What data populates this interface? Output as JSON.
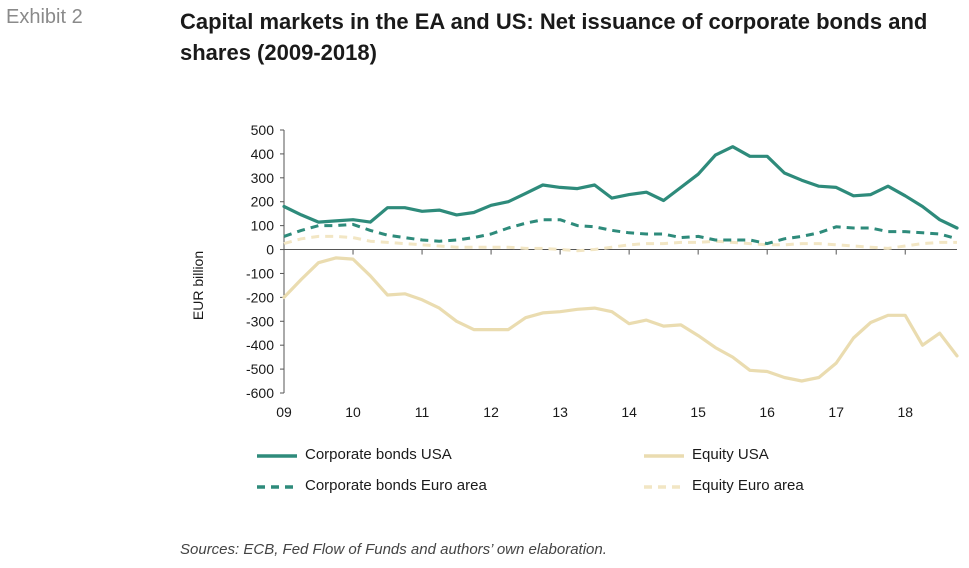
{
  "header": {
    "exhibit": "Exhibit 2",
    "title": "Capital markets in the EA and US: Net issuance of corporate bonds and shares (2009-2018)"
  },
  "footer": {
    "source": "Sources: ECB, Fed Flow of Funds and authors’ own elaboration."
  },
  "chart_data": {
    "type": "line",
    "ylabel": "EUR billion",
    "ylim": [
      -600,
      500
    ],
    "yticks": [
      500,
      400,
      300,
      200,
      100,
      0,
      -100,
      -200,
      -300,
      -400,
      -500,
      -600
    ],
    "xlim": [
      2009,
      2018.75
    ],
    "xticks": [
      2009,
      2010,
      2011,
      2012,
      2013,
      2014,
      2015,
      2016,
      2017,
      2018
    ],
    "xtick_labels": [
      "09",
      "10",
      "11",
      "12",
      "13",
      "14",
      "15",
      "16",
      "17",
      "18"
    ],
    "grid": false,
    "legend_position": "bottom",
    "x": [
      2009.0,
      2009.25,
      2009.5,
      2009.75,
      2010.0,
      2010.25,
      2010.5,
      2010.75,
      2011.0,
      2011.25,
      2011.5,
      2011.75,
      2012.0,
      2012.25,
      2012.5,
      2012.75,
      2013.0,
      2013.25,
      2013.5,
      2013.75,
      2014.0,
      2014.25,
      2014.5,
      2014.75,
      2015.0,
      2015.25,
      2015.5,
      2015.75,
      2016.0,
      2016.25,
      2016.5,
      2016.75,
      2017.0,
      2017.25,
      2017.5,
      2017.75,
      2018.0,
      2018.25,
      2018.5,
      2018.75
    ],
    "series": [
      {
        "name": "Corporate bonds USA",
        "color": "#2e8b7b",
        "style": "solid",
        "values": [
          180,
          145,
          115,
          120,
          125,
          115,
          175,
          175,
          160,
          165,
          145,
          155,
          185,
          200,
          235,
          270,
          260,
          255,
          270,
          215,
          230,
          240,
          205,
          260,
          315,
          395,
          430,
          390,
          390,
          320,
          290,
          265,
          260,
          225,
          230,
          265,
          225,
          180,
          125,
          90
        ]
      },
      {
        "name": "Equity USA",
        "color": "#eadcb0",
        "style": "solid",
        "values": [
          -200,
          -125,
          -55,
          -35,
          -40,
          -110,
          -190,
          -185,
          -210,
          -245,
          -300,
          -335,
          -335,
          -335,
          -285,
          -265,
          -260,
          -250,
          -245,
          -260,
          -310,
          -295,
          -320,
          -315,
          -360,
          -410,
          -450,
          -505,
          -510,
          -535,
          -550,
          -535,
          -475,
          -370,
          -305,
          -275,
          -275,
          -400,
          -350,
          -445
        ]
      },
      {
        "name": "Corporate bonds Euro area",
        "color": "#2e8b7b",
        "style": "dashed",
        "values": [
          55,
          80,
          100,
          100,
          105,
          80,
          60,
          50,
          40,
          35,
          40,
          50,
          65,
          90,
          110,
          125,
          125,
          100,
          95,
          80,
          70,
          65,
          65,
          50,
          55,
          40,
          40,
          40,
          25,
          45,
          55,
          70,
          95,
          90,
          90,
          75,
          75,
          70,
          65,
          45
        ]
      },
      {
        "name": "Equity Euro area",
        "color": "#f2e6c4",
        "style": "dashed",
        "values": [
          25,
          45,
          55,
          55,
          50,
          35,
          30,
          25,
          20,
          15,
          10,
          10,
          10,
          10,
          5,
          5,
          0,
          -5,
          0,
          10,
          20,
          25,
          25,
          30,
          30,
          35,
          30,
          25,
          20,
          20,
          25,
          25,
          20,
          15,
          10,
          5,
          15,
          25,
          30,
          30
        ]
      }
    ]
  }
}
